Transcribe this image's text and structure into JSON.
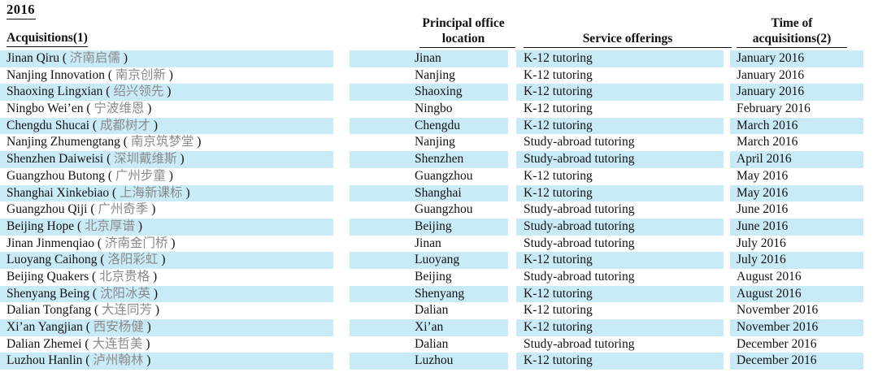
{
  "page": {
    "year_heading": "2016"
  },
  "colors": {
    "stripe": "#c9ebf8",
    "chinese_text": "#8a8a8a",
    "text": "#111111"
  },
  "table": {
    "columns": {
      "acquisitions": "Acquisitions(1)",
      "location_line1": "Principal office",
      "location_line2": "location",
      "service": "Service offerings",
      "time_line1": "Time of",
      "time_line2": "acquisitions(2)"
    },
    "rows": [
      {
        "name_en": "Jinan Qiru",
        "name_cn": "济南启儒",
        "location": "Jinan",
        "service": "K-12 tutoring",
        "time": "January 2016"
      },
      {
        "name_en": "Nanjing Innovation",
        "name_cn": "南京创新",
        "location": "Nanjing",
        "service": "K-12 tutoring",
        "time": "January 2016"
      },
      {
        "name_en": "Shaoxing Lingxian",
        "name_cn": "绍兴领先",
        "location": "Shaoxing",
        "service": "K-12 tutoring",
        "time": "January 2016"
      },
      {
        "name_en": "Ningbo Wei’en",
        "name_cn": "宁波维恩",
        "location": "Ningbo",
        "service": "K-12 tutoring",
        "time": "February 2016"
      },
      {
        "name_en": "Chengdu Shucai",
        "name_cn": "成都树才",
        "location": "Chengdu",
        "service": "K-12 tutoring",
        "time": "March 2016"
      },
      {
        "name_en": "Nanjing Zhumengtang",
        "name_cn": "南京筑梦堂",
        "location": "Nanjing",
        "service": "Study-abroad tutoring",
        "time": "March 2016"
      },
      {
        "name_en": "Shenzhen Daiweisi",
        "name_cn": "深圳戴维斯",
        "location": "Shenzhen",
        "service": "Study-abroad tutoring",
        "time": "April 2016"
      },
      {
        "name_en": "Guangzhou Butong",
        "name_cn": "广州步童",
        "location": "Guangzhou",
        "service": "K-12 tutoring",
        "time": "May 2016"
      },
      {
        "name_en": "Shanghai Xinkebiao",
        "name_cn": "上海新课标",
        "location": "Shanghai",
        "service": "K-12 tutoring",
        "time": "May 2016"
      },
      {
        "name_en": "Guangzhou Qiji",
        "name_cn": "广州奇季",
        "location": "Guangzhou",
        "service": "Study-abroad tutoring",
        "time": "June 2016"
      },
      {
        "name_en": "Beijing Hope",
        "name_cn": "北京厚谱",
        "location": "Beijing",
        "service": "Study-abroad tutoring",
        "time": "June 2016"
      },
      {
        "name_en": "Jinan Jinmenqiao",
        "name_cn": "济南金门桥",
        "location": "Jinan",
        "service": "Study-abroad tutoring",
        "time": "July 2016"
      },
      {
        "name_en": "Luoyang Caihong",
        "name_cn": "洛阳彩虹",
        "location": "Luoyang",
        "service": "K-12 tutoring",
        "time": "July 2016"
      },
      {
        "name_en": "Beijing Quakers",
        "name_cn": "北京贵格",
        "location": "Beijing",
        "service": "Study-abroad tutoring",
        "time": "August 2016"
      },
      {
        "name_en": "Shenyang Being",
        "name_cn": "沈阳冰英",
        "location": "Shenyang",
        "service": "K-12 tutoring",
        "time": "August 2016"
      },
      {
        "name_en": "Dalian Tongfang",
        "name_cn": "大连同芳",
        "location": "Dalian",
        "service": "K-12 tutoring",
        "time": "November 2016"
      },
      {
        "name_en": "Xi’an Yangjian",
        "name_cn": "西安杨健",
        "location": "Xi’an",
        "service": "K-12 tutoring",
        "time": "November 2016"
      },
      {
        "name_en": "Dalian Zhemei",
        "name_cn": "大连哲美",
        "location": "Dalian",
        "service": "Study-abroad tutoring",
        "time": "December 2016"
      },
      {
        "name_en": "Luzhou Hanlin",
        "name_cn": "泸州翰林",
        "location": "Luzhou",
        "service": "K-12 tutoring",
        "time": "December 2016"
      }
    ]
  }
}
